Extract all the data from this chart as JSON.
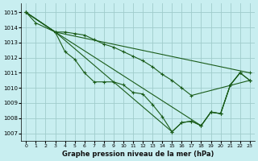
{
  "xlabel": "Graphe pression niveau de la mer (hPa)",
  "background_color": "#c8eef0",
  "grid_color": "#a0cccc",
  "line_color": "#1a5c1a",
  "marker": "+",
  "xlim": [
    -0.5,
    23.5
  ],
  "ylim": [
    1006.5,
    1015.6
  ],
  "yticks": [
    1007,
    1008,
    1009,
    1010,
    1011,
    1012,
    1013,
    1014,
    1015
  ],
  "xticks": [
    0,
    1,
    2,
    3,
    4,
    5,
    6,
    7,
    8,
    9,
    10,
    11,
    12,
    13,
    14,
    15,
    16,
    17,
    18,
    19,
    20,
    21,
    22,
    23
  ],
  "lines": [
    {
      "x": [
        0,
        1,
        3,
        23
      ],
      "y": [
        1015.0,
        1014.3,
        1013.7,
        1011.0
      ]
    },
    {
      "x": [
        0,
        3,
        4,
        5,
        6,
        7,
        8,
        9,
        10,
        11,
        12,
        13,
        14,
        15,
        16,
        17,
        23
      ],
      "y": [
        1015.0,
        1013.7,
        1013.7,
        1013.6,
        1013.5,
        1013.2,
        1012.9,
        1012.7,
        1012.4,
        1012.1,
        1011.8,
        1011.4,
        1010.9,
        1010.5,
        1010.0,
        1009.5,
        1010.5
      ]
    },
    {
      "x": [
        0,
        3,
        4,
        5,
        6,
        7,
        8,
        9,
        10,
        11,
        12,
        13,
        14,
        15,
        16,
        17,
        18,
        19,
        20,
        21,
        22
      ],
      "y": [
        1015.0,
        1013.7,
        1012.4,
        1011.9,
        1011.0,
        1010.4,
        1010.4,
        1010.4,
        1010.2,
        1009.7,
        1009.6,
        1008.9,
        1008.1,
        1007.1,
        1007.7,
        1007.8,
        1007.5,
        1008.4,
        1008.3,
        1010.2,
        1011.0
      ]
    },
    {
      "x": [
        0,
        3,
        18,
        19,
        20,
        21,
        22,
        23
      ],
      "y": [
        1015.0,
        1013.7,
        1007.5,
        1008.4,
        1008.3,
        1010.2,
        1011.0,
        1010.5
      ]
    },
    {
      "x": [
        0,
        3,
        15,
        16,
        17,
        18,
        19,
        20,
        21,
        22,
        23
      ],
      "y": [
        1015.0,
        1013.7,
        1007.1,
        1007.7,
        1007.8,
        1007.5,
        1008.4,
        1008.3,
        1010.2,
        1011.0,
        1010.5
      ]
    }
  ]
}
